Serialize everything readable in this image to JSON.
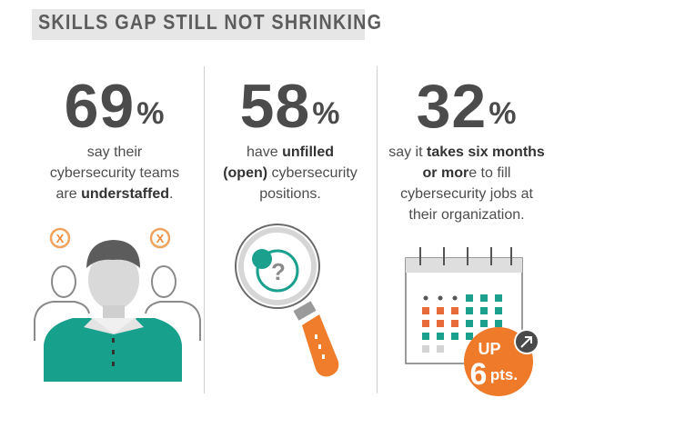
{
  "title": "SKILLS GAP STILL NOT SHRINKING",
  "stats": [
    {
      "number": "69",
      "unit": "%",
      "line1": "say their",
      "line2": "cybersecurity teams",
      "line3_pre": "are ",
      "line3_bold": "understaffed",
      "line3_post": "."
    },
    {
      "number": "58",
      "unit": "%",
      "line1_pre": "have ",
      "line1_bold": "unfilled",
      "line2_bold": "(open)",
      "line2_post": " cybersecurity",
      "line3": "positions."
    },
    {
      "number": "32",
      "unit": "%",
      "line1_pre": "say it ",
      "line1_bold": "takes six months",
      "line2_bold": "or mor",
      "line2_post": "e to fill",
      "line3": "cybersecurity jobs at",
      "line4": "their organization."
    }
  ],
  "icons": {
    "x_mark": "X",
    "question_mark": "?",
    "badge_line1": "UP",
    "badge_num": "6",
    "badge_unit": "pts."
  },
  "colors": {
    "teal": "#1a9b8a",
    "orange": "#ee7a2a",
    "gray_dark": "#5b5b5b",
    "red_cell": "#e8693a"
  }
}
